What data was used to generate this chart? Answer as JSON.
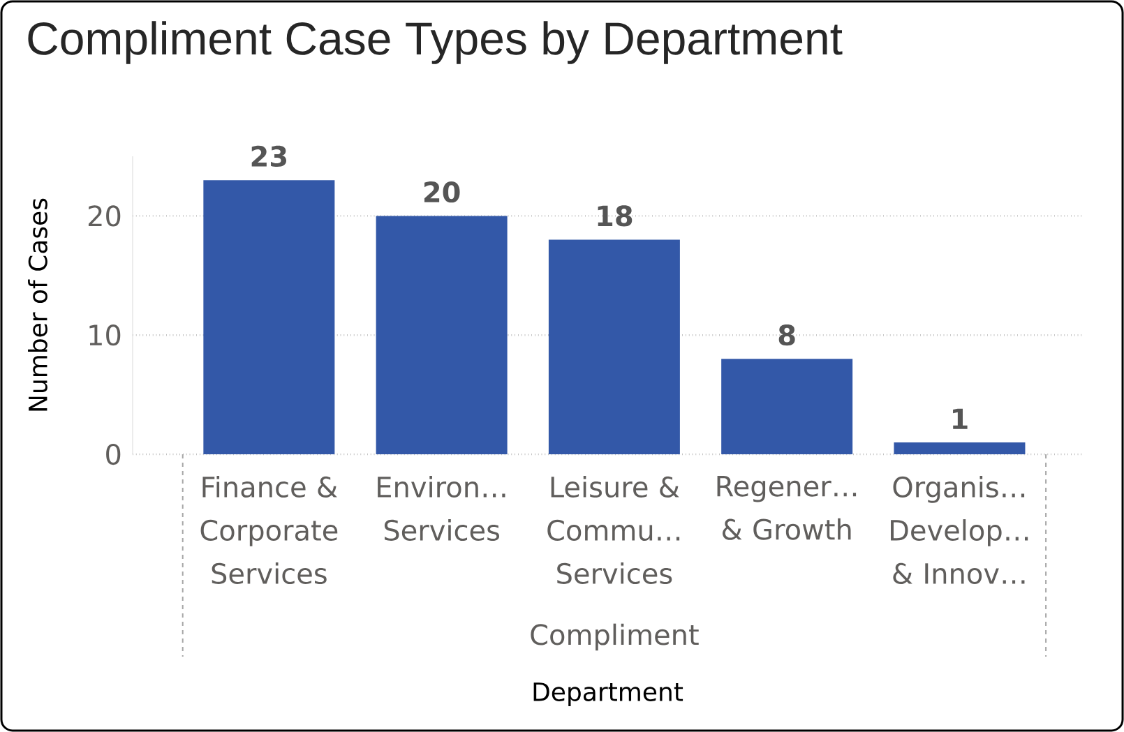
{
  "chart_data": {
    "type": "bar",
    "title": "Compliment Case Types by Department",
    "xlabel": "Department",
    "ylabel": "Number of Cases",
    "categories": [
      "Finance & Corporate Services",
      "Environ… Services",
      "Leisure & Commu… Services",
      "Regener… & Growth",
      "Organis… Develop… & Innov…"
    ],
    "values": [
      23,
      20,
      18,
      8,
      1
    ],
    "color": "#3358a8",
    "ylim": [
      0,
      25
    ],
    "yticks": [
      0,
      10,
      20
    ],
    "grid": "y",
    "data_labels": true,
    "annotations": [
      "Compliment"
    ]
  }
}
